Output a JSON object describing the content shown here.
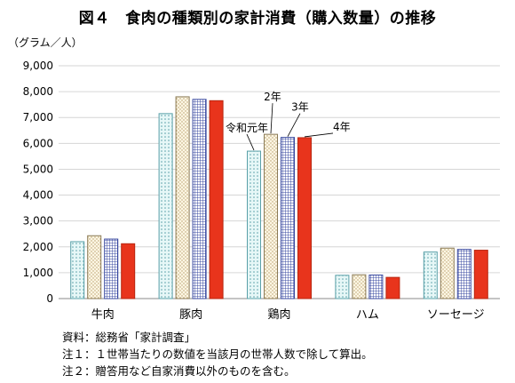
{
  "chart_data": {
    "type": "bar",
    "title": "図４　食肉の種類別の家計消費（購入数量）の推移",
    "ylabel": "（グラム／人）",
    "ylim": [
      0,
      9000
    ],
    "ytick_step": 1000,
    "yticks": [
      "0",
      "1,000",
      "2,000",
      "3,000",
      "4,000",
      "5,000",
      "6,000",
      "7,000",
      "8,000",
      "9,000"
    ],
    "grid": true,
    "categories": [
      "牛肉",
      "豚肉",
      "鶏肉",
      "ハム",
      "ソーセージ"
    ],
    "series": [
      {
        "name": "令和元年",
        "values": [
          2200,
          7150,
          5700,
          900,
          1800
        ]
      },
      {
        "name": "2年",
        "values": [
          2430,
          7800,
          6350,
          920,
          1950
        ]
      },
      {
        "name": "3年",
        "values": [
          2300,
          7700,
          6230,
          910,
          1900
        ]
      },
      {
        "name": "4年",
        "values": [
          2120,
          7650,
          6220,
          820,
          1870
        ]
      }
    ],
    "annotations_category": "鶏肉"
  },
  "colors": {
    "s0_fill": "#e6f7f7",
    "s0_stroke": "#5aa0a8",
    "s1_fill": "#fdf6e3",
    "s1_stroke": "#8a7a55",
    "s2_fill": "#c9d0ee",
    "s2_stroke": "#3949a0",
    "s3_fill": "#e8341c",
    "s3_stroke": "#b8260f"
  },
  "notes": [
    "資料：総務省「家計調査」",
    "注１：１世帯当たりの数値を当該月の世帯人数で除して算出。",
    "注２：贈答用など自家消費以外のものを含む。"
  ]
}
